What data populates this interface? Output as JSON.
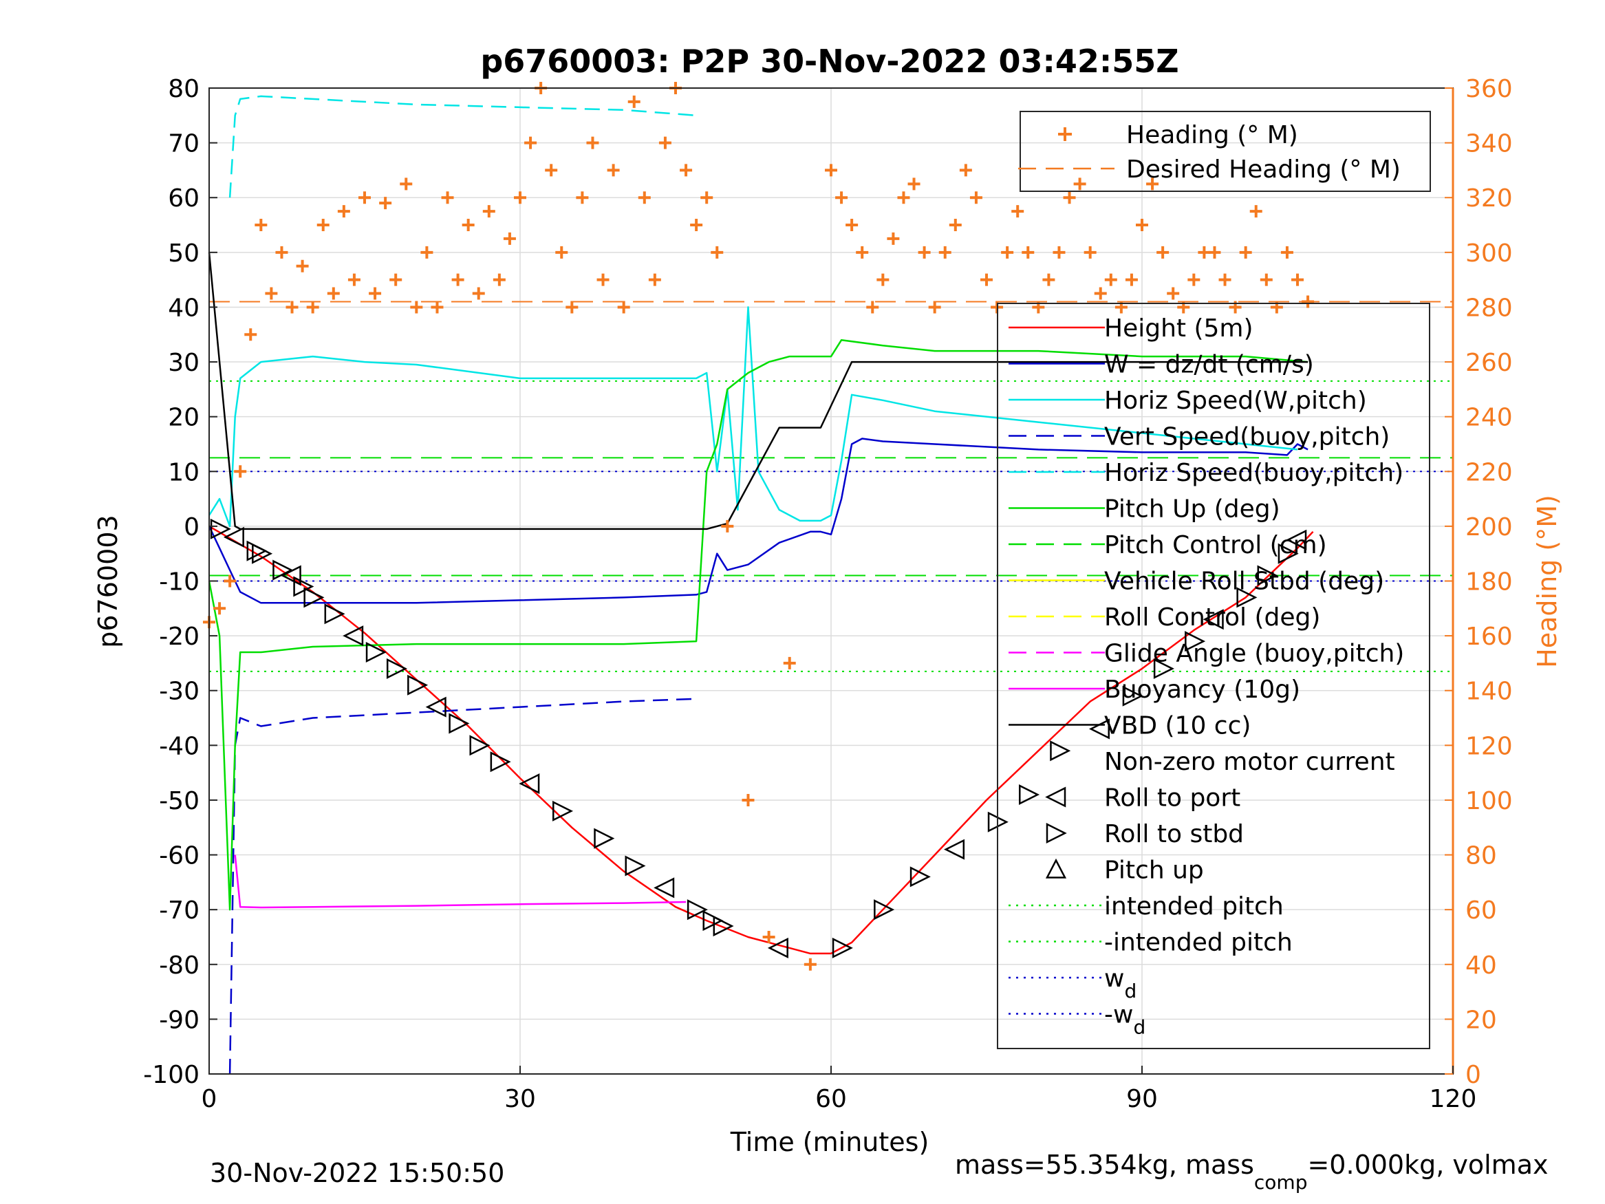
{
  "chart_data": {
    "type": "line",
    "title": "p6760003: P2P 30-Nov-2022 03:42:55Z",
    "xlabel": "Time (minutes)",
    "ylabel": "p6760003",
    "y2label": "Heading (°M)",
    "xlim": [
      0,
      120
    ],
    "ylim": [
      -100,
      80
    ],
    "y2lim": [
      0,
      360
    ],
    "xticks": [
      "0",
      "30",
      "60",
      "90",
      "120"
    ],
    "yticks": [
      "80",
      "70",
      "60",
      "50",
      "40",
      "30",
      "20",
      "10",
      "0",
      "-10",
      "-20",
      "-30",
      "-40",
      "-50",
      "-60",
      "-70",
      "-80",
      "-90",
      "-100"
    ],
    "y2ticks": [
      "360",
      "340",
      "320",
      "300",
      "280",
      "260",
      "240",
      "220",
      "200",
      "180",
      "160",
      "140",
      "120",
      "100",
      "80",
      "60",
      "40",
      "20",
      "0"
    ],
    "grid": true,
    "footer_left": "30-Nov-2022 15:50:50",
    "footer_right": {
      "a": "mass=55.354kg, mass",
      "sub": "comp",
      "b": "=0.000kg, volmax"
    },
    "colors": {
      "heading": "#F47A20",
      "height": "#FF0000",
      "w": "#0000CC",
      "horiz": "#00E5E5",
      "pitch": "#00DD00",
      "roll": "#FFFF00",
      "glide": "#FF00FF",
      "buoy": "#FF00FF",
      "vbd": "#000000",
      "axis2": "#F47A20"
    },
    "legend_top": {
      "placement": "top-right",
      "entries": [
        {
          "label": "Heading (° M)",
          "style": "plus",
          "color": "#F47A20"
        },
        {
          "label": "Desired Heading (° M)",
          "style": "dash",
          "color": "#F47A20"
        }
      ]
    },
    "legend_main": {
      "placement": "right",
      "entries": [
        {
          "label": "Height (5m)",
          "style": "solid",
          "color": "#FF0000"
        },
        {
          "label": "W = dz/dt (cm/s)",
          "style": "solid",
          "color": "#0000CC"
        },
        {
          "label": "Horiz Speed(W,pitch)",
          "style": "solid",
          "color": "#00E5E5"
        },
        {
          "label": "Vert Speed(buoy,pitch)",
          "style": "dash",
          "color": "#0000CC"
        },
        {
          "label": "Horiz Speed(buoy,pitch)",
          "style": "dash",
          "color": "#00E5E5"
        },
        {
          "label": "Pitch Up (deg)",
          "style": "solid",
          "color": "#00DD00"
        },
        {
          "label": "Pitch Control (cm)",
          "style": "dash",
          "color": "#00DD00"
        },
        {
          "label": "Vehicle Roll Stbd (deg)",
          "style": "solid",
          "color": "#FFFF00"
        },
        {
          "label": "Roll Control (deg)",
          "style": "dash",
          "color": "#FFFF00"
        },
        {
          "label": "Glide Angle (buoy,pitch)",
          "style": "dash",
          "color": "#FF00FF"
        },
        {
          "label": "Buoyancy (10g)",
          "style": "solid",
          "color": "#FF00FF"
        },
        {
          "label": "VBD (10 cc)",
          "style": "solid",
          "color": "#000000"
        },
        {
          "label": "Non-zero motor current",
          "style": "none",
          "color": "#000000"
        },
        {
          "label": "Roll to port",
          "style": "tri-left",
          "color": "#000000"
        },
        {
          "label": "Roll to stbd",
          "style": "tri-right",
          "color": "#000000"
        },
        {
          "label": "Pitch up",
          "style": "tri-up",
          "color": "#000000"
        },
        {
          "label": "intended pitch",
          "style": "dot",
          "color": "#00DD00"
        },
        {
          "label": "-intended pitch",
          "style": "dot",
          "color": "#00DD00"
        },
        {
          "label": "w",
          "sub": "d",
          "style": "dot",
          "color": "#0000CC"
        },
        {
          "label": "-w",
          "sub": "d",
          "style": "dot",
          "color": "#0000CC"
        }
      ]
    },
    "reference_lines": {
      "intended_pitch": 26.5,
      "neg_intended_pitch": -26.5,
      "w_d": 10,
      "neg_w_d": -10,
      "desired_heading": 282,
      "pitch_control_upper": 12.5,
      "pitch_control_lower": -9
    },
    "series": [
      {
        "name": "Height (5m)",
        "color": "#FF0000",
        "x": [
          0,
          5,
          10,
          15,
          20,
          25,
          30,
          35,
          40,
          45,
          48,
          50,
          52,
          55,
          58,
          60,
          62,
          65,
          70,
          75,
          80,
          85,
          90,
          95,
          100,
          105,
          106.5
        ],
        "y": [
          0,
          -5.5,
          -12,
          -19.5,
          -28,
          -36.5,
          -46,
          -55,
          -63,
          -69.5,
          -72,
          -73.5,
          -75,
          -76.5,
          -78,
          -78,
          -76,
          -70,
          -60,
          -50,
          -41,
          -32,
          -26,
          -19,
          -13,
          -4,
          -1
        ]
      },
      {
        "name": "W = dz/dt (cm/s)",
        "color": "#0000CC",
        "x": [
          0,
          1,
          2,
          3,
          5,
          10,
          20,
          30,
          40,
          47,
          48,
          49,
          50,
          52,
          55,
          58,
          59,
          60,
          61,
          62,
          63,
          65,
          70,
          80,
          90,
          100,
          104,
          105,
          106
        ],
        "y": [
          0,
          -4,
          -8,
          -12,
          -14,
          -14,
          -14,
          -13.5,
          -13,
          -12.5,
          -12,
          -5,
          -8,
          -7,
          -3,
          -1,
          -1,
          -1.5,
          5,
          15,
          16,
          15.5,
          15,
          14,
          13.5,
          13.5,
          13,
          15,
          14
        ]
      },
      {
        "name": "Horiz Speed(W,pitch)",
        "color": "#00E5E5",
        "x": [
          0,
          1,
          2,
          2.5,
          3,
          5,
          10,
          15,
          20,
          30,
          40,
          47,
          48,
          49,
          50,
          51,
          52,
          53,
          55,
          57,
          59,
          60,
          61,
          62,
          65,
          70,
          80,
          90,
          100,
          105
        ],
        "y": [
          2,
          5,
          0,
          20,
          27,
          30,
          31,
          30,
          29.5,
          27,
          27,
          27,
          28,
          10,
          25,
          3,
          40,
          10,
          3,
          1,
          1,
          2,
          12,
          24,
          23,
          21,
          19,
          17,
          15,
          14
        ]
      },
      {
        "name": "Horiz Speed(buoy,pitch)",
        "color": "#00E5E5",
        "dash": true,
        "x": [
          2,
          2.5,
          3,
          5,
          10,
          20,
          30,
          40,
          47
        ],
        "y": [
          60,
          75,
          78,
          78.5,
          78,
          77,
          76.5,
          76,
          75
        ]
      },
      {
        "name": "Vert Speed(buoy,pitch)",
        "color": "#0000CC",
        "dash": true,
        "x": [
          2,
          2.5,
          3,
          5,
          10,
          20,
          30,
          40,
          47
        ],
        "y": [
          -100,
          -40,
          -35,
          -36.5,
          -35,
          -34,
          -33,
          -32,
          -31.5
        ]
      },
      {
        "name": "Pitch Up (deg)",
        "color": "#00DD00",
        "x": [
          0,
          1,
          2,
          2.5,
          3,
          5,
          10,
          20,
          30,
          40,
          47,
          48,
          49,
          50,
          52,
          54,
          56,
          58,
          59,
          60,
          61,
          65,
          70,
          80,
          90,
          100,
          106
        ],
        "y": [
          -10,
          -20,
          -70,
          -40,
          -23,
          -23,
          -22,
          -21.5,
          -21.5,
          -21.5,
          -21,
          10,
          15,
          25,
          28,
          30,
          31,
          31,
          31,
          31,
          34,
          33,
          32,
          32,
          31,
          31,
          30
        ]
      },
      {
        "name": "Buoyancy (10g)",
        "color": "#FF00FF",
        "x": [
          2.5,
          3,
          5,
          10,
          20,
          30,
          40,
          46
        ],
        "y": [
          -60,
          -69.5,
          -69.6,
          -69.5,
          -69.3,
          -69,
          -68.8,
          -68.6
        ]
      },
      {
        "name": "VBD (10 cc)",
        "color": "#000000",
        "x": [
          0,
          2.5,
          3,
          10,
          20,
          30,
          40,
          48,
          50,
          55,
          59,
          62,
          70,
          80,
          90,
          100,
          106
        ],
        "y": [
          50,
          0,
          -0.5,
          -0.5,
          -0.5,
          -0.5,
          -0.5,
          -0.5,
          0.5,
          18,
          18,
          30,
          30,
          30,
          30,
          30,
          30
        ]
      },
      {
        "name": "Heading (° M)",
        "color": "#F47A20",
        "axis": "right",
        "marker": "plus",
        "x": [
          0,
          1,
          2,
          3,
          4,
          5,
          6,
          7,
          8,
          9,
          10,
          11,
          12,
          13,
          14,
          15,
          16,
          17,
          18,
          19,
          20,
          21,
          22,
          23,
          24,
          25,
          26,
          27,
          28,
          29,
          30,
          31,
          32,
          33,
          34,
          35,
          36,
          37,
          38,
          39,
          40,
          41,
          42,
          43,
          44,
          45,
          46,
          47,
          48,
          49,
          50,
          52,
          54,
          56,
          58,
          60,
          61,
          62,
          63,
          64,
          65,
          66,
          67,
          68,
          69,
          70,
          71,
          72,
          73,
          74,
          75,
          76,
          77,
          78,
          79,
          80,
          81,
          82,
          83,
          84,
          85,
          86,
          87,
          88,
          89,
          90,
          91,
          92,
          93,
          94,
          95,
          96,
          97,
          98,
          99,
          100,
          101,
          102,
          103,
          104,
          105,
          106
        ],
        "y": [
          165,
          170,
          180,
          220,
          270,
          310,
          285,
          300,
          280,
          295,
          280,
          310,
          285,
          315,
          290,
          320,
          285,
          318,
          290,
          325,
          280,
          300,
          280,
          320,
          290,
          310,
          285,
          315,
          290,
          305,
          320,
          340,
          360,
          330,
          300,
          280,
          320,
          340,
          290,
          330,
          280,
          355,
          320,
          290,
          340,
          360,
          330,
          310,
          320,
          300,
          200,
          100,
          50,
          150,
          40,
          330,
          320,
          310,
          300,
          280,
          290,
          305,
          320,
          325,
          300,
          280,
          300,
          310,
          330,
          320,
          290,
          280,
          300,
          315,
          300,
          280,
          290,
          300,
          320,
          325,
          300,
          285,
          290,
          280,
          290,
          310,
          325,
          300,
          285,
          280,
          290,
          300,
          300,
          290,
          280,
          300,
          315,
          290,
          280,
          300,
          290,
          282
        ]
      }
    ],
    "motor_events": {
      "x": [
        1,
        2.5,
        4.5,
        5,
        7,
        8,
        9,
        10,
        12,
        14,
        16,
        18,
        20,
        22,
        24,
        26,
        28,
        31,
        34,
        38,
        41,
        44,
        47,
        48.5,
        49.5,
        55,
        61,
        65,
        68.5,
        72,
        76,
        79,
        82,
        86,
        89,
        92,
        95,
        97,
        100,
        102,
        104,
        105
      ],
      "y": [
        -0.5,
        -2,
        -4.5,
        -5,
        -8,
        -9,
        -11,
        -13,
        -16,
        -20,
        -23,
        -26,
        -29,
        -33,
        -36,
        -40,
        -43,
        -47,
        -52,
        -57,
        -62,
        -66,
        -70,
        -72,
        -73,
        -77,
        -77,
        -70,
        -64,
        -59,
        -54,
        -49,
        -41,
        -37,
        -31,
        -26,
        -21,
        -17,
        -13,
        -9,
        -5,
        -2.5
      ]
    }
  }
}
